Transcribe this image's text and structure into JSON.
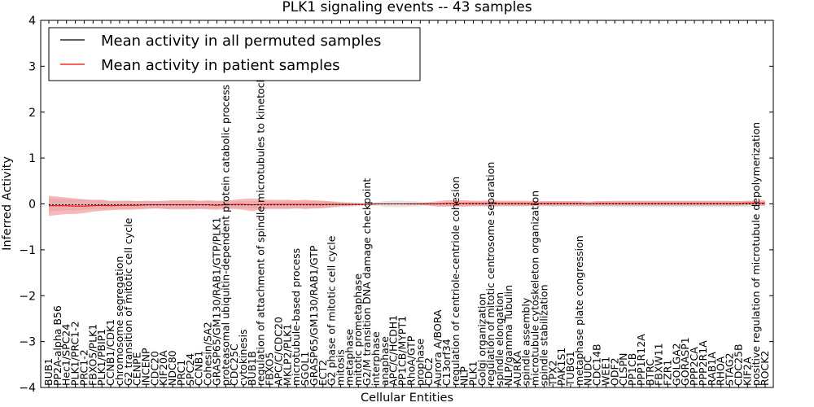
{
  "chart_data": {
    "type": "line",
    "title": "PLK1 signaling events -- 43 samples",
    "xlabel": "Cellular Entities",
    "ylabel": "Inferred Activity",
    "ylim": [
      -4,
      4
    ],
    "yticks": [
      4,
      3,
      2,
      1,
      0,
      -1,
      -2,
      -3,
      -4
    ],
    "ytick_labels": [
      "4",
      "3",
      "2",
      "1",
      "0",
      "−1",
      "−2",
      "−3",
      "−4"
    ],
    "grid": false,
    "legend_position": "top-left",
    "colors": {
      "permuted": "#000000",
      "patient": "#ff0000",
      "patient_band": "#f08080",
      "permuted_band": "#c8c8c8"
    },
    "categories": [
      "BUB1",
      "PP2A-alpha B56",
      "Hec1/SPC24",
      "PLK1/PRC1-2",
      "PRC1-2",
      "FBXO5/PLK1",
      "PLK1/PBIP1",
      "CCNB1/CDK1",
      "chromosome segregation",
      "G2 transition of mitotic cell cycle",
      "CENPE",
      "INCENP",
      "CDC20",
      "KIF20A",
      "NDC80",
      "PRC1",
      "SPC24",
      "CCNB1",
      "Cohesin/SA2",
      "GRASP65/GM130/RAB1/GTP/PLK1",
      "proteasomal ubiquitin-dependent protein catabolic process",
      "CDC25C",
      "cytokinesis",
      "BUB1B",
      "regulation of attachment of spindle microtubules to kinetochore",
      "FBXO5",
      "APC/C/CDC20",
      "MKLP2/PLK1",
      "microtubule-based process",
      "SGOL1",
      "GRASP65/GM130/RAB1/GTP",
      "ECT2",
      "G2 phase of mitotic cell cycle",
      "mitosis",
      "metaphase",
      "mitotic prometaphase",
      "G2/M transition DNA damage checkpoint",
      "interphase",
      "anaphase",
      "APC/C/HCDH1",
      "PP1CB/MYPT1",
      "RhoA/GTP",
      "prophase",
      "CDC2",
      "Aurora A/BORA",
      "C13orf34",
      "regulation of centriole-centriole cohesion",
      "NLP",
      "PLK1",
      "Golgi organization",
      "regulation of mitotic centrosome separation",
      "spindle elongation",
      "NLP/gamma Tubulin",
      "AURKA",
      "spindle assembly",
      "microtubule cytoskeleton organization",
      "spindle stabilization",
      "TPX2",
      "PAK1S1",
      "TUBG1",
      "metaphase plate congression",
      "NUDC",
      "CDC14B",
      "WEE1",
      "ODF2",
      "CLSPN",
      "PP1CB",
      "PPP1R12A",
      "BTRC",
      "FBXW11",
      "FZR1",
      "GOLGA2",
      "GORASP1",
      "PPP2CA",
      "PPP2R1A",
      "RAB1A",
      "RHOA",
      "STAG2",
      "CDC25B",
      "KIF2A",
      "positive regulation of microtubule depolymerization",
      "ROCK2"
    ],
    "series": [
      {
        "name": "Mean activity in all permuted samples",
        "values": [
          -0.02,
          -0.02,
          -0.02,
          -0.02,
          -0.02,
          -0.02,
          -0.02,
          -0.02,
          -0.02,
          -0.02,
          -0.02,
          -0.02,
          -0.02,
          -0.02,
          -0.02,
          -0.02,
          -0.02,
          -0.02,
          -0.02,
          -0.02,
          -0.02,
          -0.02,
          -0.02,
          -0.02,
          -0.02,
          -0.02,
          -0.02,
          -0.02,
          -0.02,
          -0.02,
          -0.02,
          -0.02,
          -0.01,
          -0.01,
          -0.01,
          -0.01,
          -0.01,
          0,
          0,
          0,
          0,
          0,
          0,
          0,
          0,
          0,
          0,
          0,
          0,
          0,
          0,
          0,
          0,
          0,
          0,
          0,
          0,
          0,
          0,
          0,
          0,
          0,
          0,
          0,
          0,
          0,
          0,
          0,
          0,
          0,
          0,
          0,
          0,
          0,
          0,
          0,
          0,
          0,
          0,
          0,
          0,
          0
        ]
      },
      {
        "name": "Mean activity in patient samples",
        "values": [
          -0.04,
          -0.04,
          -0.04,
          -0.05,
          -0.05,
          -0.04,
          -0.03,
          -0.04,
          -0.03,
          -0.03,
          -0.03,
          -0.02,
          -0.02,
          -0.02,
          -0.02,
          -0.02,
          -0.02,
          -0.02,
          -0.02,
          -0.03,
          -0.02,
          -0.01,
          -0.01,
          -0.02,
          -0.01,
          -0.01,
          -0.01,
          -0.01,
          -0.01,
          -0.01,
          -0.01,
          -0.01,
          -0.01,
          -0.01,
          -0.01,
          -0.01,
          -0.01,
          0,
          0,
          0,
          0,
          0,
          0,
          0,
          0,
          0.01,
          0.01,
          0.01,
          0.01,
          0.01,
          0.01,
          0.01,
          0.01,
          0.01,
          0.01,
          0.01,
          0.01,
          0.01,
          0.01,
          0.01,
          0.01,
          0,
          0.01,
          0.01,
          0.01,
          0.01,
          0.01,
          0.01,
          0.01,
          0.01,
          0.01,
          0.01,
          0.01,
          0.01,
          0.01,
          0.01,
          0.01,
          0.01,
          0.01,
          0.02,
          0.02,
          0.02
        ]
      }
    ],
    "bands": {
      "patient_halfwidth": [
        0.22,
        0.2,
        0.18,
        0.17,
        0.15,
        0.13,
        0.12,
        0.1,
        0.1,
        0.1,
        0.09,
        0.09,
        0.08,
        0.09,
        0.1,
        0.1,
        0.1,
        0.09,
        0.1,
        0.1,
        0.09,
        0.1,
        0.12,
        0.14,
        0.11,
        0.1,
        0.1,
        0.1,
        0.09,
        0.1,
        0.09,
        0.08,
        0.06,
        0.04,
        0.03,
        0.02,
        0.01,
        0.01,
        0.01,
        0.01,
        0.01,
        0.02,
        0.02,
        0.04,
        0.06,
        0.07,
        0.07,
        0.07,
        0.06,
        0.06,
        0.07,
        0.06,
        0.06,
        0.06,
        0.06,
        0.05,
        0.05,
        0.05,
        0.05,
        0.05,
        0.05,
        0.04,
        0.05,
        0.05,
        0.05,
        0.05,
        0.05,
        0.05,
        0.05,
        0.05,
        0.05,
        0.05,
        0.05,
        0.05,
        0.05,
        0.05,
        0.05,
        0.05,
        0.05,
        0.05,
        0.05,
        0.06
      ],
      "permuted_halfwidth": [
        0.14,
        0.13,
        0.12,
        0.12,
        0.11,
        0.1,
        0.1,
        0.09,
        0.09,
        0.09,
        0.08,
        0.08,
        0.08,
        0.08,
        0.08,
        0.08,
        0.08,
        0.08,
        0.08,
        0.08,
        0.08,
        0.08,
        0.08,
        0.08,
        0.08,
        0.08,
        0.08,
        0.08,
        0.08,
        0.08,
        0.08,
        0.08,
        0.07,
        0.06,
        0.05,
        0.04,
        0.03,
        0.04,
        0.06,
        0.07,
        0.07,
        0.06,
        0.05,
        0.03,
        0.03,
        0.04,
        0.04,
        0.04,
        0.05,
        0.05,
        0.05,
        0.05,
        0.05,
        0.05,
        0.05,
        0.05,
        0.05,
        0.06,
        0.06,
        0.06,
        0.06,
        0.06,
        0.06,
        0.06,
        0.07,
        0.07,
        0.07,
        0.07,
        0.07,
        0.07,
        0.07,
        0.07,
        0.07,
        0.07,
        0.07,
        0.07,
        0.07,
        0.07,
        0.06,
        0.06,
        0.05,
        0.05
      ]
    }
  }
}
